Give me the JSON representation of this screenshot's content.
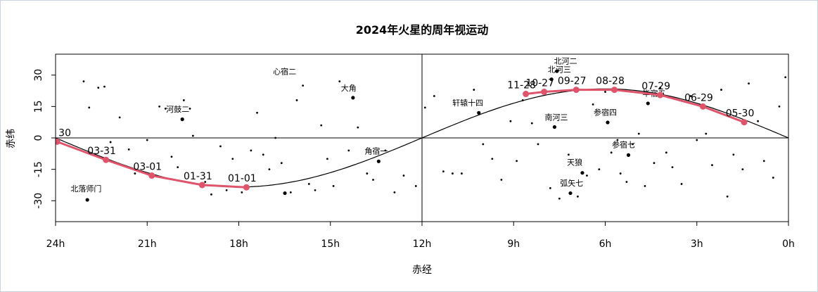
{
  "chart_data": {
    "type": "scatter",
    "title": "2024年火星的周年视运动",
    "xlabel": "赤经",
    "ylabel": "赤纬",
    "xlim": [
      24,
      0
    ],
    "ylim": [
      -40,
      40
    ],
    "x_ticks": [
      {
        "value": 24,
        "label": "24h"
      },
      {
        "value": 21,
        "label": "21h"
      },
      {
        "value": 18,
        "label": "18h"
      },
      {
        "value": 15,
        "label": "15h"
      },
      {
        "value": 12,
        "label": "12h"
      },
      {
        "value": 9,
        "label": "9h"
      },
      {
        "value": 6,
        "label": "6h"
      },
      {
        "value": 3,
        "label": "3h"
      },
      {
        "value": 0,
        "label": "0h"
      }
    ],
    "y_ticks": [
      {
        "value": 30,
        "label": "30"
      },
      {
        "value": 15,
        "label": "15"
      },
      {
        "value": 0,
        "label": "0"
      },
      {
        "value": -15,
        "label": "-15"
      },
      {
        "value": -30,
        "label": "-30"
      }
    ],
    "grid": false,
    "named_stars": [
      {
        "name": "心宿二",
        "x": 16.49,
        "y": -26.4,
        "label_x": 16.5,
        "label_y": 30.5
      },
      {
        "name": "大角",
        "x": 14.26,
        "y": 19.2,
        "label_x": 14.4,
        "label_y": 22.5
      },
      {
        "name": "河鼓二",
        "x": 19.85,
        "y": 8.9,
        "label_x": 20.0,
        "label_y": 12.5
      },
      {
        "name": "北落师门",
        "x": 22.96,
        "y": -29.6,
        "label_x": 23.0,
        "label_y": -25.5
      },
      {
        "name": "角宿一",
        "x": 13.42,
        "y": -11.2,
        "label_x": 13.5,
        "label_y": -7.5
      },
      {
        "name": "轩辕十四",
        "x": 10.14,
        "y": 12.0,
        "label_x": 10.5,
        "label_y": 15.5
      },
      {
        "name": "北河二",
        "x": 7.58,
        "y": 31.9,
        "label_x": 7.3,
        "label_y": 35.5
      },
      {
        "name": "北河三",
        "x": 7.76,
        "y": 28.0,
        "label_x": 7.5,
        "label_y": 31.5
      },
      {
        "name": "南河三",
        "x": 7.66,
        "y": 5.2,
        "label_x": 7.6,
        "label_y": 8.5
      },
      {
        "name": "参宿四",
        "x": 5.92,
        "y": 7.4,
        "label_x": 6.0,
        "label_y": 11.0
      },
      {
        "name": "毕宿五",
        "x": 4.6,
        "y": 16.5,
        "label_x": 4.4,
        "label_y": 20.0
      },
      {
        "name": "参宿七",
        "x": 5.24,
        "y": -8.2,
        "label_x": 5.4,
        "label_y": -4.5
      },
      {
        "name": "天狼",
        "x": 6.75,
        "y": -16.7,
        "label_x": 7.0,
        "label_y": -13.0
      },
      {
        "name": "弧矢七",
        "x": 7.14,
        "y": -26.4,
        "label_x": 7.1,
        "label_y": -22.8
      }
    ],
    "stars": [
      [
        23.08,
        27.0
      ],
      [
        22.9,
        14.5
      ],
      [
        22.6,
        24.0
      ],
      [
        22.4,
        24.5
      ],
      [
        22.2,
        -2.0
      ],
      [
        21.9,
        9.8
      ],
      [
        21.6,
        -5.5
      ],
      [
        21.4,
        -17.0
      ],
      [
        21.0,
        -1.0
      ],
      [
        20.6,
        15.0
      ],
      [
        20.4,
        14.0
      ],
      [
        20.2,
        -9.0
      ],
      [
        20.0,
        -14.0
      ],
      [
        19.8,
        18.0
      ],
      [
        19.6,
        14.0
      ],
      [
        19.5,
        1.0
      ],
      [
        19.1,
        -21.0
      ],
      [
        18.9,
        -27.0
      ],
      [
        18.6,
        -4.0
      ],
      [
        18.4,
        -25.0
      ],
      [
        18.2,
        -10.0
      ],
      [
        17.9,
        -26.0
      ],
      [
        17.6,
        -6.0
      ],
      [
        17.4,
        12.0
      ],
      [
        17.2,
        -8.0
      ],
      [
        17.0,
        -15.0
      ],
      [
        16.8,
        0.0
      ],
      [
        16.6,
        -12.0
      ],
      [
        16.3,
        -26.0
      ],
      [
        16.1,
        18.0
      ],
      [
        15.9,
        25.0
      ],
      [
        15.7,
        -22.0
      ],
      [
        15.5,
        -25.0
      ],
      [
        15.3,
        6.0
      ],
      [
        15.1,
        -10.0
      ],
      [
        14.9,
        -23.0
      ],
      [
        14.7,
        27.0
      ],
      [
        14.4,
        -6.0
      ],
      [
        14.1,
        5.0
      ],
      [
        13.8,
        -17.0
      ],
      [
        13.6,
        -20.0
      ],
      [
        13.2,
        -6.0
      ],
      [
        12.9,
        -26.0
      ],
      [
        12.6,
        -18.0
      ],
      [
        12.2,
        -23.0
      ],
      [
        11.9,
        14.5
      ],
      [
        11.6,
        20.0
      ],
      [
        11.3,
        -16.0
      ],
      [
        11.0,
        -17.0
      ],
      [
        10.7,
        -17.0
      ],
      [
        10.3,
        23.0
      ],
      [
        10.0,
        -3.0
      ],
      [
        9.7,
        -10.0
      ],
      [
        9.4,
        -20.0
      ],
      [
        9.1,
        8.0
      ],
      [
        8.9,
        -11.0
      ],
      [
        8.7,
        18.0
      ],
      [
        8.4,
        7.0
      ],
      [
        8.2,
        -3.0
      ],
      [
        7.8,
        -24.0
      ],
      [
        7.5,
        -29.0
      ],
      [
        7.2,
        -8.0
      ],
      [
        6.9,
        -28.0
      ],
      [
        6.6,
        -18.0
      ],
      [
        6.4,
        16.0
      ],
      [
        6.2,
        -15.0
      ],
      [
        6.0,
        22.0
      ],
      [
        5.8,
        -7.0
      ],
      [
        5.6,
        -1.0
      ],
      [
        5.5,
        -17.0
      ],
      [
        5.3,
        -21.0
      ],
      [
        5.1,
        -3.0
      ],
      [
        4.9,
        2.0
      ],
      [
        4.7,
        -23.0
      ],
      [
        4.4,
        -12.0
      ],
      [
        4.2,
        24.0
      ],
      [
        4.0,
        -7.0
      ],
      [
        3.8,
        -14.0
      ],
      [
        3.5,
        -22.0
      ],
      [
        3.2,
        20.0
      ],
      [
        3.0,
        -1.0
      ],
      [
        2.7,
        2.0
      ],
      [
        2.5,
        -13.0
      ],
      [
        2.2,
        23.0
      ],
      [
        2.0,
        -28.0
      ],
      [
        1.8,
        -8.0
      ],
      [
        1.5,
        -15.0
      ],
      [
        1.3,
        26.0
      ],
      [
        1.0,
        8.0
      ],
      [
        0.8,
        -11.0
      ],
      [
        0.5,
        -19.0
      ],
      [
        0.3,
        15.0
      ],
      [
        0.1,
        29.0
      ]
    ],
    "mars_track": [
      {
        "date": "03-31",
        "x": 22.35,
        "y": -10.5
      },
      {
        "date": "03-01",
        "x": 20.85,
        "y": -18.0
      },
      {
        "date": "01-31",
        "x": 19.2,
        "y": -22.5
      },
      {
        "date": "01-01",
        "x": 17.75,
        "y": -23.6
      },
      {
        "date": "11-28",
        "x": 8.6,
        "y": 21.0
      },
      {
        "date": "10-27",
        "x": 8.0,
        "y": 22.0
      },
      {
        "date": "09-27",
        "x": 6.95,
        "y": 23.0
      },
      {
        "date": "08-28",
        "x": 5.7,
        "y": 23.0
      },
      {
        "date": "07-29",
        "x": 4.2,
        "y": 20.5
      },
      {
        "date": "06-29",
        "x": 2.8,
        "y": 15.0
      },
      {
        "date": "05-30",
        "x": 1.45,
        "y": 7.5
      }
    ],
    "track_start_label": "30",
    "track_start": {
      "x": 23.95,
      "y": -1.8
    },
    "colors": {
      "mars": "#df536b",
      "ecliptic": "#000000",
      "stars": "#000000"
    }
  }
}
